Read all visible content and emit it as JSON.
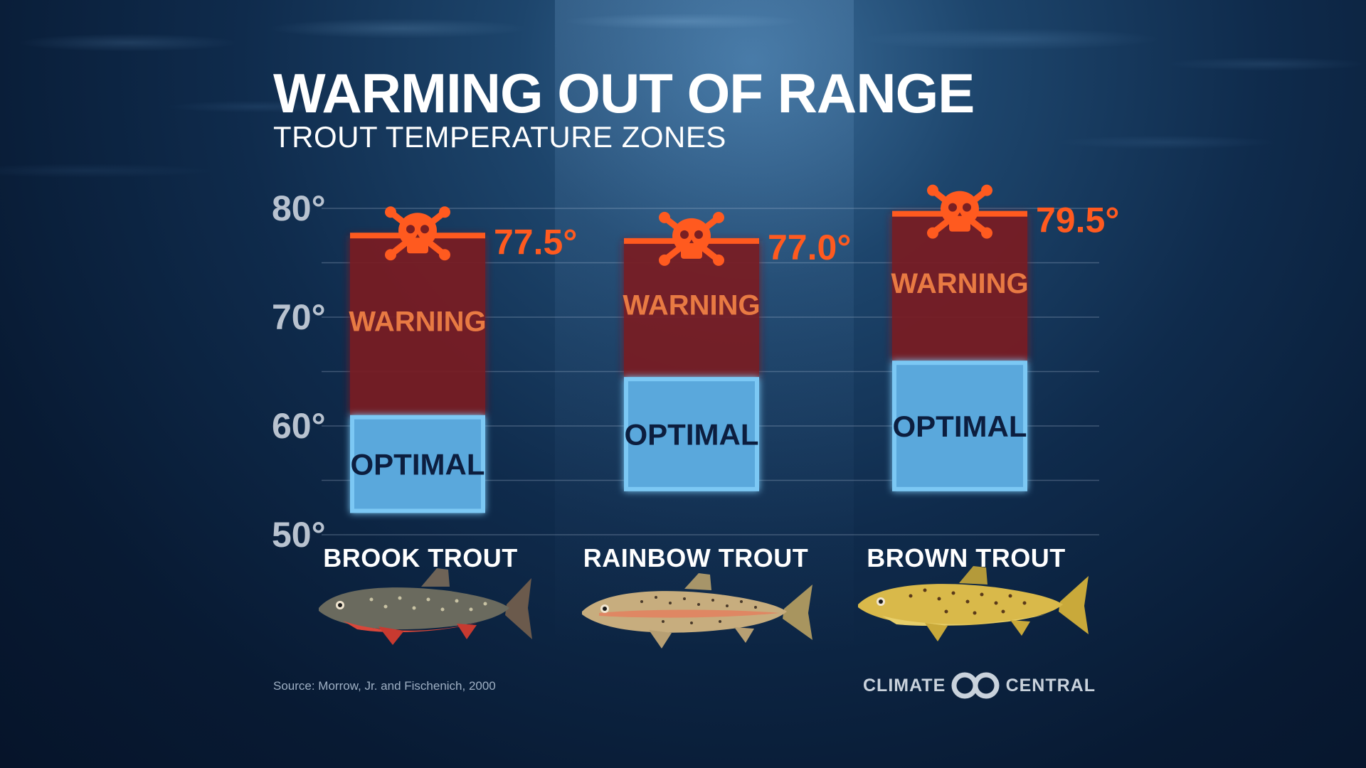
{
  "title": "WARMING OUT OF RANGE",
  "subtitle": "TROUT TEMPERATURE ZONES",
  "source": "Source: Morrow, Jr. and Fischenich, 2000",
  "logo": {
    "left": "CLIMATE",
    "right": "CENTRAL"
  },
  "colors": {
    "optimal_fill": "#5aa8dc",
    "optimal_border": "#7cc8f4",
    "optimal_text": "#0c1e3f",
    "warning_fill": "#7a1f22",
    "warning_text": "#e87a43",
    "lethal": "#ff5a1f"
  },
  "chart_data": {
    "type": "bar",
    "subtype": "floating-stacked-range",
    "title": "WARMING OUT OF RANGE",
    "subtitle": "TROUT TEMPERATURE ZONES",
    "ylabel": "",
    "ylim": [
      50,
      80
    ],
    "yticks": [
      50,
      60,
      70,
      80
    ],
    "ytick_labels": [
      "50°",
      "60°",
      "70°",
      "80°"
    ],
    "zones": {
      "optimal": "OPTIMAL",
      "warning": "WARNING"
    },
    "lethal_icon": "skull-crossbones-icon",
    "series": [
      {
        "name": "BROOK TROUT",
        "optimal": [
          52,
          61
        ],
        "warning": [
          61,
          77.5
        ],
        "lethal": 77.5,
        "lethal_label": "77.5°",
        "fish_icon": "brook-trout-icon"
      },
      {
        "name": "RAINBOW TROUT",
        "optimal": [
          54,
          64.5
        ],
        "warning": [
          64.5,
          77
        ],
        "lethal": 77,
        "lethal_label": "77.0°",
        "fish_icon": "rainbow-trout-icon"
      },
      {
        "name": "BROWN TROUT",
        "optimal": [
          54,
          66
        ],
        "warning": [
          66,
          79.5
        ],
        "lethal": 79.5,
        "lethal_label": "79.5°",
        "fish_icon": "brown-trout-icon"
      }
    ]
  }
}
